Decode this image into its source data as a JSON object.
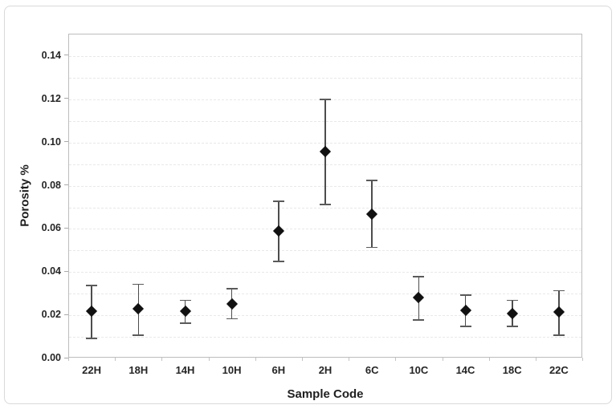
{
  "chart_data": {
    "type": "scatter",
    "title": "",
    "xlabel": "Sample Code",
    "ylabel": "Porosity %",
    "categories": [
      "22H",
      "18H",
      "14H",
      "10H",
      "6H",
      "2H",
      "6C",
      "10C",
      "14C",
      "18C",
      "22C"
    ],
    "series": [
      {
        "name": "Porosity",
        "values": [
          0.0215,
          0.0225,
          0.0215,
          0.025,
          0.0585,
          0.0955,
          0.0665,
          0.028,
          0.022,
          0.0205,
          0.021
        ],
        "error_low": [
          0.009,
          0.0105,
          0.016,
          0.018,
          0.0445,
          0.071,
          0.051,
          0.0175,
          0.0145,
          0.0145,
          0.0105
        ],
        "error_high": [
          0.0335,
          0.034,
          0.0265,
          0.032,
          0.0725,
          0.1195,
          0.082,
          0.0375,
          0.029,
          0.0265,
          0.031
        ]
      }
    ],
    "ylim": [
      0,
      0.15
    ],
    "ytick_labels": [
      "0.00",
      "0.02",
      "0.04",
      "0.06",
      "0.08",
      "0.10",
      "0.12",
      "0.14"
    ],
    "yticks": [
      0,
      0.02,
      0.04,
      0.06,
      0.08,
      0.1,
      0.12,
      0.14
    ],
    "grid": "dashed horizontal minor gridlines every 0.01",
    "grid_step": 0.01,
    "legend": "none",
    "marker": "black filled diamond with capped error bars",
    "colors": {
      "marker": "#111111",
      "error_bar": "#4d4d4d",
      "gridline": "#e8e8e8",
      "plot_border": "#bdbdbd",
      "figure_border": "#d9d9d9",
      "text": "#252525",
      "background": "#ffffff"
    }
  }
}
